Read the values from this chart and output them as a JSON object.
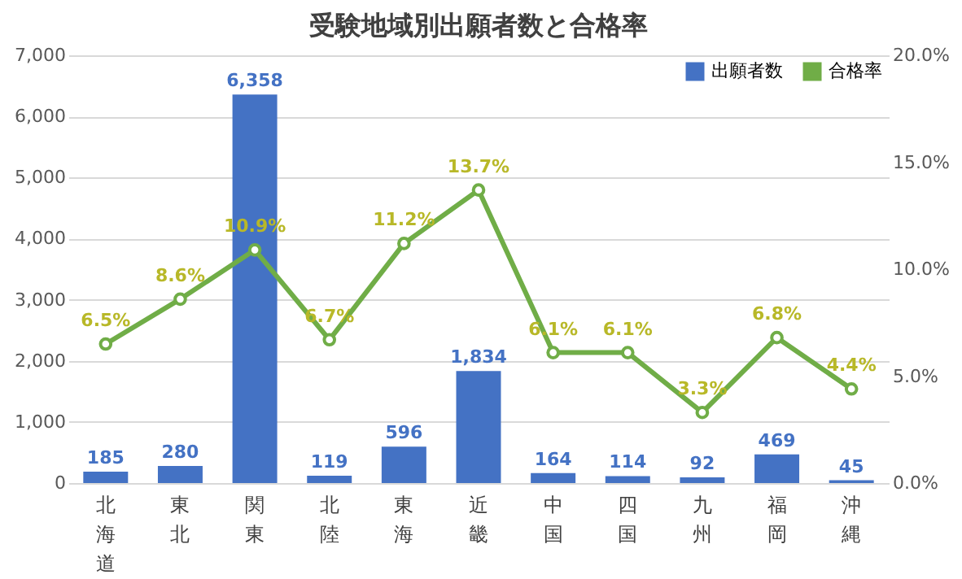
{
  "chart_data": {
    "type": "bar",
    "title": "受験地域別出願者数と合格率",
    "categories": [
      "北海道",
      "東北",
      "関東",
      "北陸",
      "東海",
      "近畿",
      "中国",
      "四国",
      "九州",
      "福岡",
      "沖縄"
    ],
    "series": [
      {
        "name": "出願者数",
        "color": "#4472c4",
        "values": [
          185,
          280,
          6358,
          119,
          596,
          1834,
          164,
          114,
          92,
          469,
          45
        ],
        "value_labels": [
          "185",
          "280",
          "6,358",
          "119",
          "596",
          "1,834",
          "164",
          "114",
          "92",
          "469",
          "45"
        ]
      },
      {
        "name": "合格率",
        "type": "line",
        "axis": "y2",
        "color": "#70ad47",
        "marker": "circle",
        "values": [
          6.5,
          8.6,
          10.9,
          6.7,
          11.2,
          13.7,
          6.1,
          6.1,
          3.3,
          6.8,
          4.4
        ],
        "value_labels": [
          "6.5%",
          "8.6%",
          "10.9%",
          "6.7%",
          "11.2%",
          "13.7%",
          "6.1%",
          "6.1%",
          "3.3%",
          "6.8%",
          "4.4%"
        ]
      }
    ],
    "data_labels": true,
    "ylim": [
      0,
      7000
    ],
    "yticks": [
      0,
      {
        "value": 1000,
        "label": "1,000"
      },
      {
        "value": 2000,
        "label": "2,000"
      },
      {
        "value": 3000,
        "label": "3,000"
      },
      {
        "value": 4000,
        "label": "4,000"
      },
      {
        "value": 5000,
        "label": "5,000"
      },
      {
        "value": 6000,
        "label": "6,000"
      },
      {
        "value": 7000,
        "label": "7,000"
      }
    ],
    "y2lim": [
      0,
      20
    ],
    "y2ticks": [
      {
        "value": 0,
        "label": "0.0%"
      },
      {
        "value": 5,
        "label": "5.0%"
      },
      {
        "value": 10,
        "label": "10.0%"
      },
      {
        "value": 15,
        "label": "15.0%"
      },
      {
        "value": 20,
        "label": "20.0%"
      }
    ],
    "grid": "y",
    "legend": "top right"
  }
}
